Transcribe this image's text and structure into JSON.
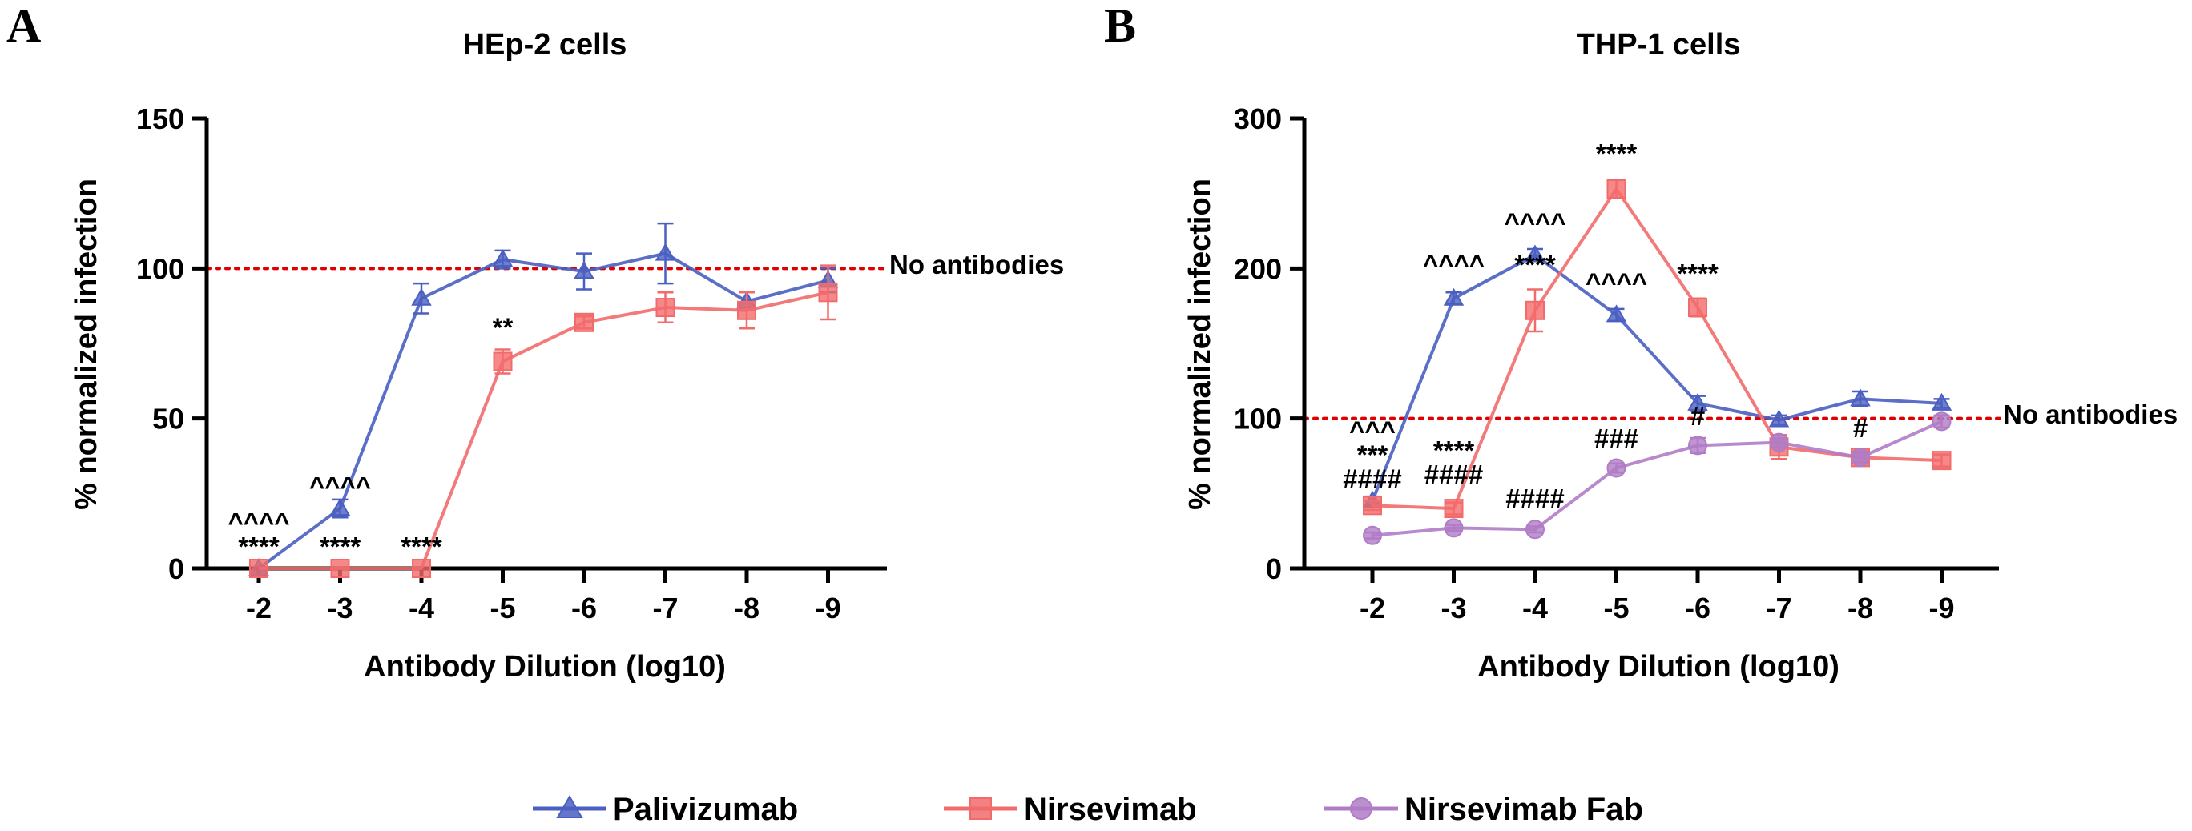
{
  "colors": {
    "Palivizumab": "#4a5fc1",
    "Nirsevimab": "#f26b6b",
    "Nirsevimab Fab": "#b07cc6",
    "reference": "#e00000",
    "axis": "#000000"
  },
  "panel_letters": [
    "A",
    "B"
  ],
  "legend": {
    "items": [
      {
        "name": "Palivizumab",
        "marker": "triangle"
      },
      {
        "name": "Nirsevimab",
        "marker": "square"
      },
      {
        "name": "Nirsevimab Fab",
        "marker": "circle"
      }
    ]
  },
  "chart_data": [
    {
      "type": "line",
      "panel": "A",
      "title": "HEp-2 cells",
      "xlabel": "Antibody Dilution (log10)",
      "ylabel": "% normalized infection",
      "categories": [
        "-2",
        "-3",
        "-4",
        "-5",
        "-6",
        "-7",
        "-8",
        "-9"
      ],
      "ylim": [
        0,
        150
      ],
      "yticks": [
        0,
        50,
        100,
        150
      ],
      "reference_line": {
        "y": 100,
        "label": "No antibodies"
      },
      "series": [
        {
          "name": "Palivizumab",
          "marker": "triangle",
          "values": [
            0,
            20,
            90,
            103,
            99,
            105,
            89,
            96
          ],
          "errors": [
            0,
            3,
            5,
            3,
            6,
            10,
            3,
            4
          ]
        },
        {
          "name": "Nirsevimab",
          "marker": "square",
          "values": [
            0,
            0,
            0,
            69,
            82,
            87,
            86,
            92
          ],
          "errors": [
            0,
            0,
            0,
            4,
            2,
            5,
            6,
            9
          ]
        }
      ],
      "annotations": [
        {
          "category": "-2",
          "y": 0,
          "lines": [
            "^^^^",
            "****"
          ]
        },
        {
          "category": "-3",
          "y": 20,
          "lines": [
            "^^^^"
          ]
        },
        {
          "category": "-3",
          "y": 0,
          "lines": [
            "****"
          ]
        },
        {
          "category": "-4",
          "y": 0,
          "lines": [
            "****"
          ]
        },
        {
          "category": "-5",
          "y": 73,
          "lines": [
            "**"
          ]
        }
      ]
    },
    {
      "type": "line",
      "panel": "B",
      "title": "THP-1 cells",
      "xlabel": "Antibody Dilution (log10)",
      "ylabel": "% normalized infection",
      "categories": [
        "-2",
        "-3",
        "-4",
        "-5",
        "-6",
        "-7",
        "-8",
        "-9"
      ],
      "ylim": [
        0,
        300
      ],
      "yticks": [
        0,
        100,
        200,
        300
      ],
      "reference_line": {
        "y": 100,
        "label": "No antibodies"
      },
      "series": [
        {
          "name": "Palivizumab",
          "marker": "triangle",
          "values": [
            45,
            180,
            209,
            169,
            110,
            99,
            113,
            110
          ],
          "errors": [
            3,
            4,
            4,
            4,
            5,
            3,
            5,
            3
          ]
        },
        {
          "name": "Nirsevimab",
          "marker": "square",
          "values": [
            42,
            40,
            172,
            253,
            174,
            81,
            74,
            72
          ],
          "errors": [
            3,
            4,
            14,
            6,
            6,
            8,
            4,
            4
          ]
        },
        {
          "name": "Nirsevimab Fab",
          "marker": "circle",
          "values": [
            22,
            27,
            26,
            67,
            82,
            84,
            74,
            98
          ],
          "errors": [
            2,
            2,
            2,
            3,
            5,
            3,
            3,
            4
          ]
        }
      ],
      "annotations": [
        {
          "category": "-2",
          "y": 45,
          "lines": [
            "^^^",
            "***",
            "####"
          ]
        },
        {
          "category": "-3",
          "y": 188,
          "lines": [
            "^^^^"
          ]
        },
        {
          "category": "-3",
          "y": 48,
          "lines": [
            "****",
            "####"
          ]
        },
        {
          "category": "-4",
          "y": 216,
          "lines": [
            "^^^^"
          ]
        },
        {
          "category": "-4",
          "y": 188,
          "lines": [
            "****"
          ]
        },
        {
          "category": "-4",
          "y": 32,
          "lines": [
            "####"
          ]
        },
        {
          "category": "-5",
          "y": 262,
          "lines": [
            "****"
          ]
        },
        {
          "category": "-5",
          "y": 176,
          "lines": [
            "^^^^"
          ]
        },
        {
          "category": "-5",
          "y": 72,
          "lines": [
            "###"
          ]
        },
        {
          "category": "-6",
          "y": 182,
          "lines": [
            "****"
          ]
        },
        {
          "category": "-6",
          "y": 87,
          "lines": [
            "#"
          ]
        },
        {
          "category": "-8",
          "y": 79,
          "lines": [
            "#"
          ]
        }
      ]
    }
  ]
}
